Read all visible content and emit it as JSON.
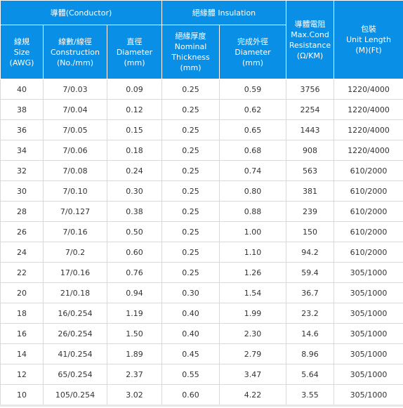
{
  "headers": {
    "group_conductor": "導體(Conductor)",
    "group_insulation": "絕緣體 Insulation",
    "resistance": "導體電阻\nMax.Cond\nResistance\n(Ω/KM)",
    "unit_length": "包裝\nUnit Length\n(M)(Ft)",
    "size": "線規\nSize\n(AWG)",
    "construction": "線數/線徑\nConstruction\n(No./mm)",
    "conductor_diameter": "直徑\nDiameter\n(mm)",
    "nominal_thickness": "絕緣厚度\nNominal\nThickness\n(mm)",
    "outer_diameter": "完成外徑\nDiameter\n(mm)"
  },
  "rows": [
    {
      "size": "40",
      "construction": "7/0.03",
      "diameter": "0.09",
      "thickness": "0.25",
      "outer": "0.59",
      "resistance": "3756",
      "length": "1220/4000"
    },
    {
      "size": "38",
      "construction": "7/0.04",
      "diameter": "0.12",
      "thickness": "0.25",
      "outer": "0.62",
      "resistance": "2254",
      "length": "1220/4000"
    },
    {
      "size": "36",
      "construction": "7/0.05",
      "diameter": "0.15",
      "thickness": "0.25",
      "outer": "0.65",
      "resistance": "1443",
      "length": "1220/4000"
    },
    {
      "size": "34",
      "construction": "7/0.06",
      "diameter": "0.18",
      "thickness": "0.25",
      "outer": "0.68",
      "resistance": "908",
      "length": "1220/4000"
    },
    {
      "size": "32",
      "construction": "7/0.08",
      "diameter": "0.24",
      "thickness": "0.25",
      "outer": "0.74",
      "resistance": "563",
      "length": "610/2000"
    },
    {
      "size": "30",
      "construction": "7/0.10",
      "diameter": "0.30",
      "thickness": "0.25",
      "outer": "0.80",
      "resistance": "381",
      "length": "610/2000"
    },
    {
      "size": "28",
      "construction": "7/0.127",
      "diameter": "0.38",
      "thickness": "0.25",
      "outer": "0.88",
      "resistance": "239",
      "length": "610/2000"
    },
    {
      "size": "26",
      "construction": "7/0.16",
      "diameter": "0.50",
      "thickness": "0.25",
      "outer": "1.00",
      "resistance": "150",
      "length": "610/2000"
    },
    {
      "size": "24",
      "construction": "7/0.2",
      "diameter": "0.60",
      "thickness": "0.25",
      "outer": "1.10",
      "resistance": "94.2",
      "length": "610/2000"
    },
    {
      "size": "22",
      "construction": "17/0.16",
      "diameter": "0.76",
      "thickness": "0.25",
      "outer": "1.26",
      "resistance": "59.4",
      "length": "305/1000"
    },
    {
      "size": "20",
      "construction": "21/0.18",
      "diameter": "0.94",
      "thickness": "0.30",
      "outer": "1.54",
      "resistance": "36.7",
      "length": "305/1000"
    },
    {
      "size": "18",
      "construction": "16/0.254",
      "diameter": "1.19",
      "thickness": "0.40",
      "outer": "1.99",
      "resistance": "23.2",
      "length": "305/1000"
    },
    {
      "size": "16",
      "construction": "26/0.254",
      "diameter": "1.50",
      "thickness": "0.40",
      "outer": "2.30",
      "resistance": "14.6",
      "length": "305/1000"
    },
    {
      "size": "14",
      "construction": "41/0.254",
      "diameter": "1.89",
      "thickness": "0.45",
      "outer": "2.79",
      "resistance": "8.96",
      "length": "305/1000"
    },
    {
      "size": "12",
      "construction": "65/0.254",
      "diameter": "2.37",
      "thickness": "0.55",
      "outer": "3.47",
      "resistance": "5.64",
      "length": "305/1000"
    },
    {
      "size": "10",
      "construction": "105/0.254",
      "diameter": "3.02",
      "thickness": "0.60",
      "outer": "4.22",
      "resistance": "3.55",
      "length": "305/1000"
    }
  ]
}
